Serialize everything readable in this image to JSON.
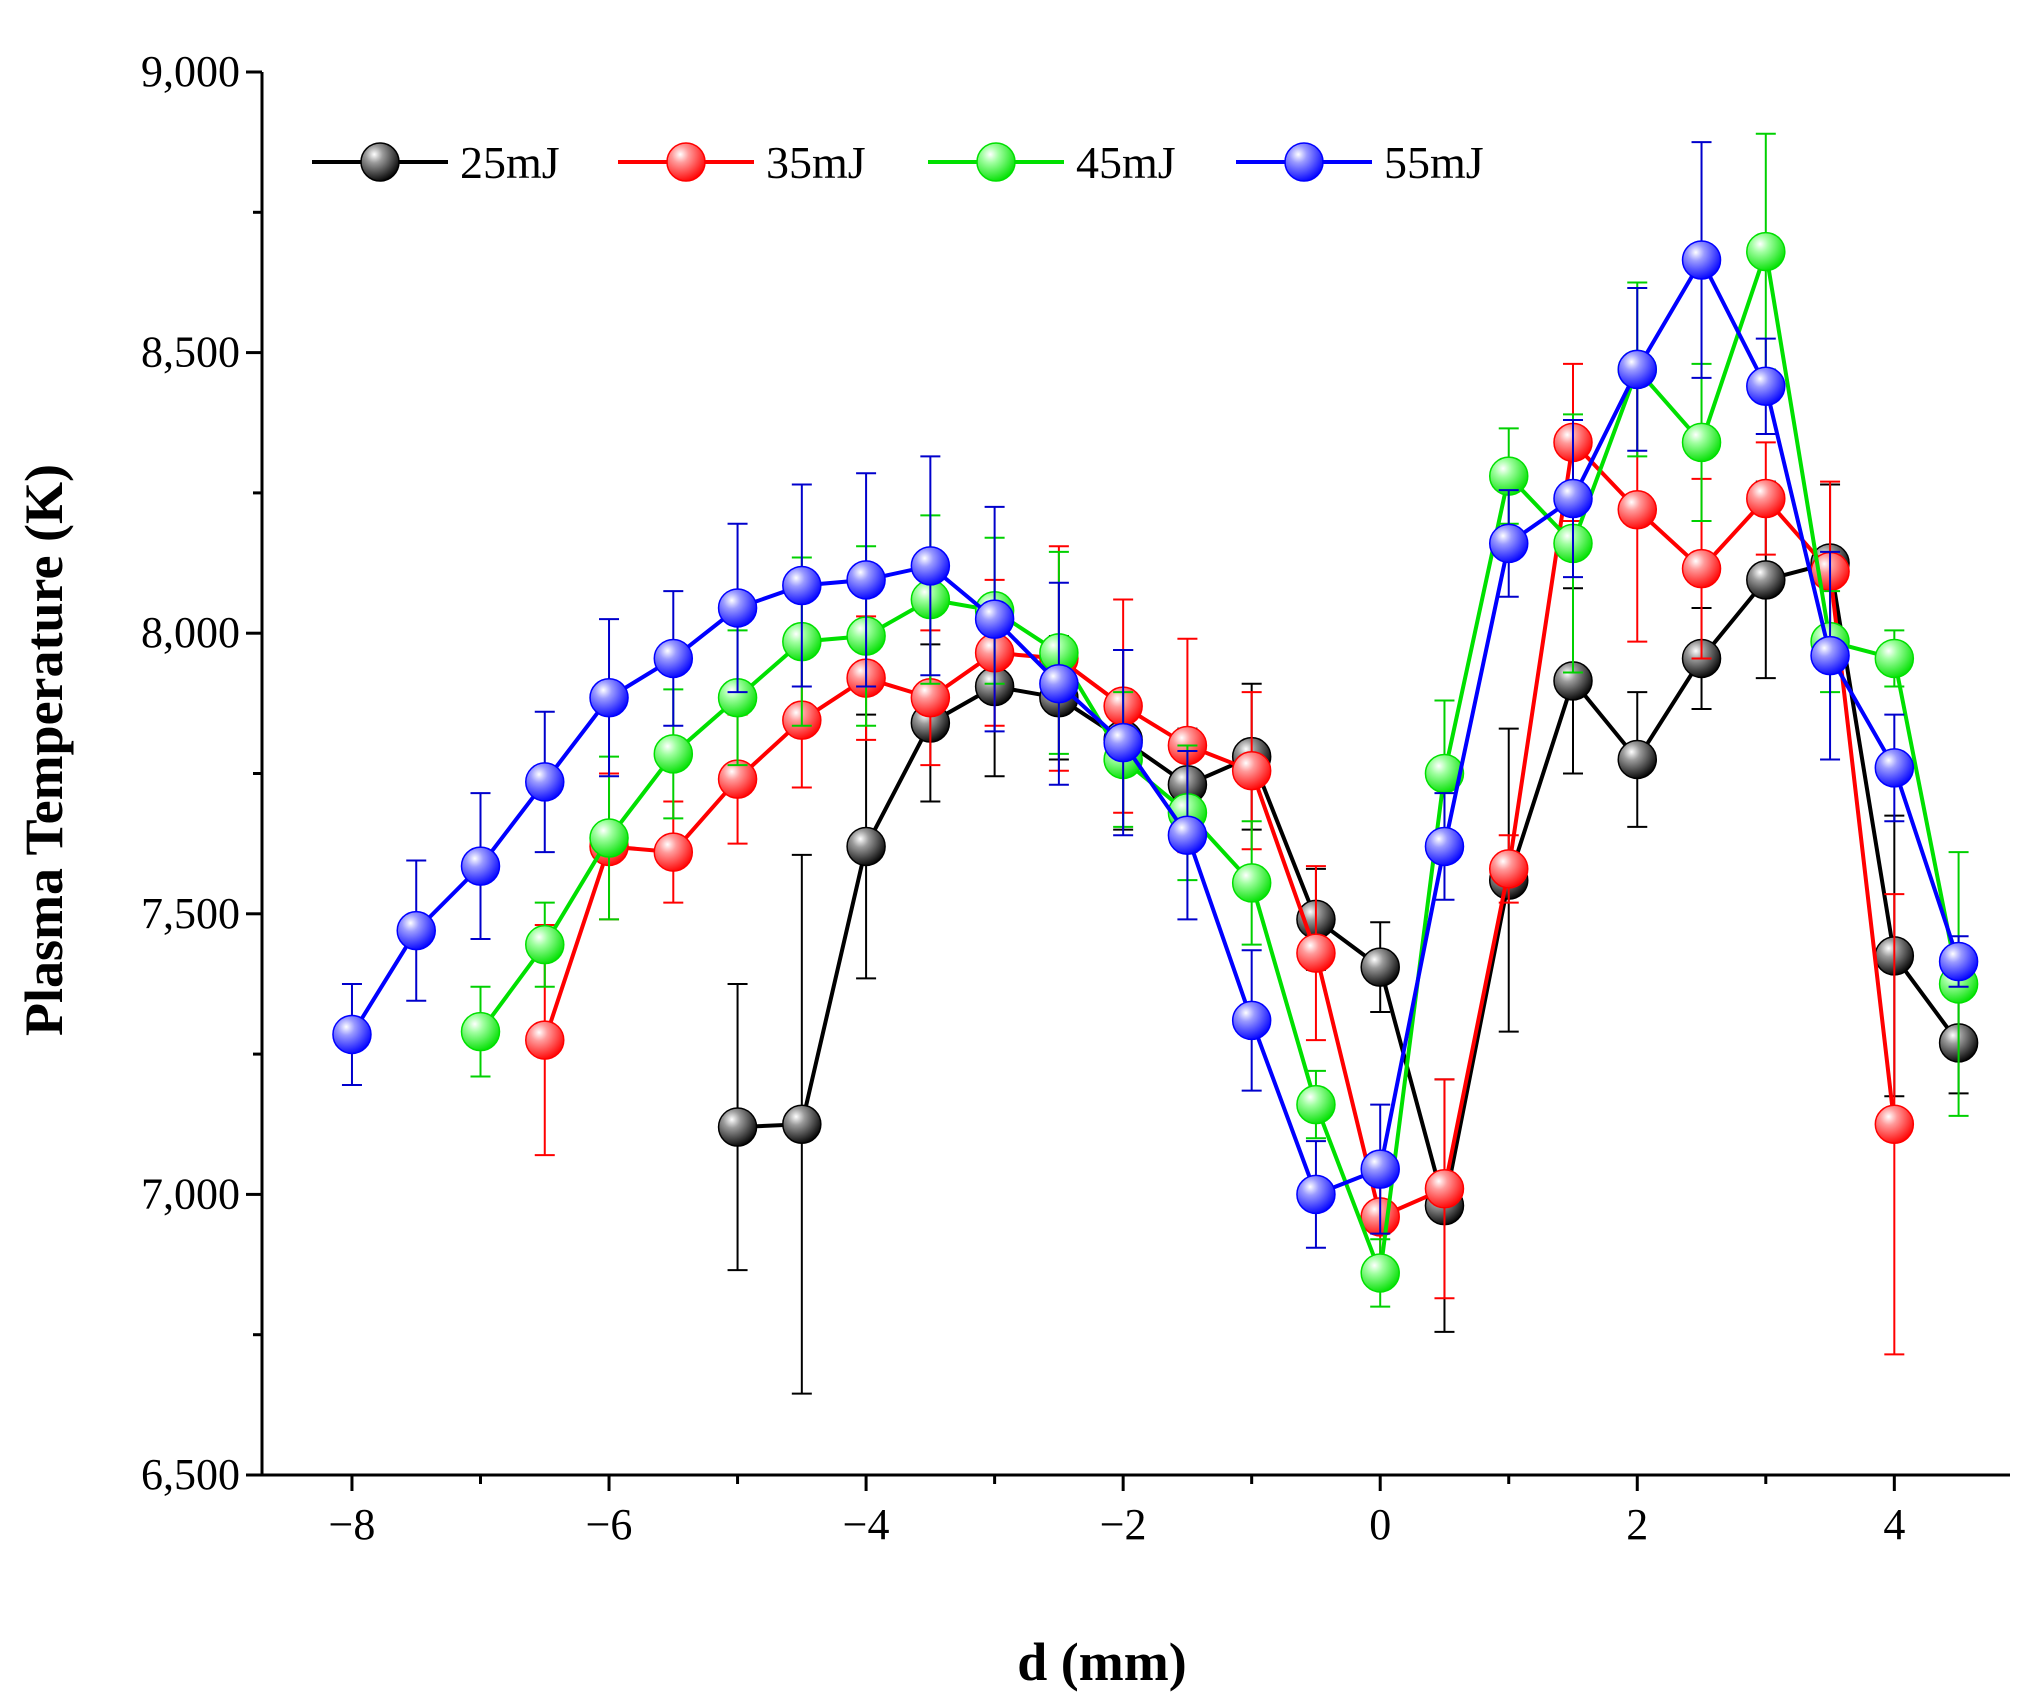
{
  "chart_data": {
    "type": "line",
    "title": "",
    "xlabel": "d (mm)",
    "ylabel": "Plasma Temperature (K)",
    "xlim": [
      -8.7,
      4.9
    ],
    "ylim": [
      6500,
      9000
    ],
    "xticks": [
      -8,
      -6,
      -4,
      -2,
      0,
      2,
      4
    ],
    "xtick_labels": [
      "−8",
      "−6",
      "−4",
      "−2",
      "0",
      "2",
      "4"
    ],
    "yticks": [
      6500,
      7000,
      7500,
      8000,
      8500,
      9000
    ],
    "ytick_labels": [
      "6,500",
      "7,000",
      "7,500",
      "8,000",
      "8,500",
      "9,000"
    ],
    "grid": false,
    "legend_position": "top-left",
    "series": [
      {
        "name": "25mJ",
        "color": "#000000",
        "highlight": "#9a9a9a",
        "errcolor": "#000000",
        "points": [
          {
            "x": -5,
            "y": 7120,
            "err": 255
          },
          {
            "x": -4.5,
            "y": 7125,
            "err": 480
          },
          {
            "x": -4,
            "y": 7620,
            "err": 235
          },
          {
            "x": -3.5,
            "y": 7840,
            "err": 140
          },
          {
            "x": -3,
            "y": 7905,
            "err": 160
          },
          {
            "x": -2.5,
            "y": 7885,
            "err": 110
          },
          {
            "x": -2,
            "y": 7810,
            "err": 160
          },
          {
            "x": -1.5,
            "y": 7730,
            "err": 100
          },
          {
            "x": -1,
            "y": 7780,
            "err": 130
          },
          {
            "x": -0.5,
            "y": 7490,
            "err": 90
          },
          {
            "x": 0,
            "y": 7405,
            "err": 80
          },
          {
            "x": 0.5,
            "y": 6980,
            "err": 225
          },
          {
            "x": 1,
            "y": 7560,
            "err": 270
          },
          {
            "x": 1.5,
            "y": 7915,
            "err": 165
          },
          {
            "x": 2,
            "y": 7775,
            "err": 120
          },
          {
            "x": 2.5,
            "y": 7955,
            "err": 90
          },
          {
            "x": 3,
            "y": 8095,
            "err": 175
          },
          {
            "x": 3.5,
            "y": 8125,
            "err": 140
          },
          {
            "x": 4,
            "y": 7425,
            "err": 250
          },
          {
            "x": 4.5,
            "y": 7270,
            "err": 90
          }
        ]
      },
      {
        "name": "35mJ",
        "color": "#ff0000",
        "highlight": "#ff9a9a",
        "errcolor": "#ff0000",
        "points": [
          {
            "x": -6.5,
            "y": 7275,
            "err": 205
          },
          {
            "x": -6,
            "y": 7620,
            "err": 130
          },
          {
            "x": -5.5,
            "y": 7610,
            "err": 90
          },
          {
            "x": -5,
            "y": 7740,
            "err": 115
          },
          {
            "x": -4.5,
            "y": 7845,
            "err": 120
          },
          {
            "x": -4,
            "y": 7920,
            "err": 110
          },
          {
            "x": -3.5,
            "y": 7885,
            "err": 120
          },
          {
            "x": -3,
            "y": 7965,
            "err": 130
          },
          {
            "x": -2.5,
            "y": 7955,
            "err": 200
          },
          {
            "x": -2,
            "y": 7870,
            "err": 190
          },
          {
            "x": -1.5,
            "y": 7800,
            "err": 190
          },
          {
            "x": -1,
            "y": 7755,
            "err": 140
          },
          {
            "x": -0.5,
            "y": 7430,
            "err": 155
          },
          {
            "x": 0,
            "y": 6960,
            "err": 80
          },
          {
            "x": 0.5,
            "y": 7010,
            "err": 195
          },
          {
            "x": 1,
            "y": 7580,
            "err": 60
          },
          {
            "x": 1.5,
            "y": 8340,
            "err": 140
          },
          {
            "x": 2,
            "y": 8220,
            "err": 235
          },
          {
            "x": 2.5,
            "y": 8115,
            "err": 160
          },
          {
            "x": 3,
            "y": 8240,
            "err": 100
          },
          {
            "x": 3.5,
            "y": 8110,
            "err": 160
          },
          {
            "x": 4,
            "y": 7125,
            "err": 410
          }
        ]
      },
      {
        "name": "45mJ",
        "color": "#00e000",
        "highlight": "#a0ffa0",
        "errcolor": "#00d000",
        "points": [
          {
            "x": -7,
            "y": 7290,
            "err": 80
          },
          {
            "x": -6.5,
            "y": 7445,
            "err": 75
          },
          {
            "x": -6,
            "y": 7635,
            "err": 145
          },
          {
            "x": -5.5,
            "y": 7785,
            "err": 115
          },
          {
            "x": -5,
            "y": 7885,
            "err": 120
          },
          {
            "x": -4.5,
            "y": 7985,
            "err": 150
          },
          {
            "x": -4,
            "y": 7995,
            "err": 160
          },
          {
            "x": -3.5,
            "y": 8060,
            "err": 150
          },
          {
            "x": -3,
            "y": 8040,
            "err": 130
          },
          {
            "x": -2.5,
            "y": 7965,
            "err": 180
          },
          {
            "x": -2,
            "y": 7775,
            "err": 120
          },
          {
            "x": -1.5,
            "y": 7680,
            "err": 120
          },
          {
            "x": -1,
            "y": 7555,
            "err": 110
          },
          {
            "x": -0.5,
            "y": 7160,
            "err": 60
          },
          {
            "x": 0,
            "y": 6860,
            "err": 60
          },
          {
            "x": 0.5,
            "y": 7750,
            "err": 130
          },
          {
            "x": 1,
            "y": 8280,
            "err": 85
          },
          {
            "x": 1.5,
            "y": 8160,
            "err": 230
          },
          {
            "x": 2,
            "y": 8470,
            "err": 155
          },
          {
            "x": 2.5,
            "y": 8340,
            "err": 140
          },
          {
            "x": 3,
            "y": 8680,
            "err": 210
          },
          {
            "x": 3.5,
            "y": 7985,
            "err": 90
          },
          {
            "x": 4,
            "y": 7955,
            "err": 50
          },
          {
            "x": 4.5,
            "y": 7375,
            "err": 235
          }
        ]
      },
      {
        "name": "55mJ",
        "color": "#0000ff",
        "highlight": "#9a9aff",
        "errcolor": "#0000cc",
        "points": [
          {
            "x": -8,
            "y": 7285,
            "err": 90
          },
          {
            "x": -7.5,
            "y": 7470,
            "err": 125
          },
          {
            "x": -7,
            "y": 7585,
            "err": 130
          },
          {
            "x": -6.5,
            "y": 7735,
            "err": 125
          },
          {
            "x": -6,
            "y": 7885,
            "err": 140
          },
          {
            "x": -5.5,
            "y": 7955,
            "err": 120
          },
          {
            "x": -5,
            "y": 8045,
            "err": 150
          },
          {
            "x": -4.5,
            "y": 8085,
            "err": 180
          },
          {
            "x": -4,
            "y": 8095,
            "err": 190
          },
          {
            "x": -3.5,
            "y": 8120,
            "err": 195
          },
          {
            "x": -3,
            "y": 8025,
            "err": 200
          },
          {
            "x": -2.5,
            "y": 7910,
            "err": 180
          },
          {
            "x": -2,
            "y": 7805,
            "err": 165
          },
          {
            "x": -1.5,
            "y": 7640,
            "err": 150
          },
          {
            "x": -1,
            "y": 7310,
            "err": 125
          },
          {
            "x": -0.5,
            "y": 7000,
            "err": 95
          },
          {
            "x": 0,
            "y": 7045,
            "err": 115
          },
          {
            "x": 0.5,
            "y": 7620,
            "err": 95
          },
          {
            "x": 1,
            "y": 8160,
            "err": 95
          },
          {
            "x": 1.5,
            "y": 8240,
            "err": 140
          },
          {
            "x": 2,
            "y": 8470,
            "err": 145
          },
          {
            "x": 2.5,
            "y": 8665,
            "err": 210
          },
          {
            "x": 3,
            "y": 8440,
            "err": 85
          },
          {
            "x": 3.5,
            "y": 7960,
            "err": 185
          },
          {
            "x": 4,
            "y": 7760,
            "err": 95
          },
          {
            "x": 4.5,
            "y": 7415,
            "err": 45
          }
        ]
      }
    ]
  }
}
